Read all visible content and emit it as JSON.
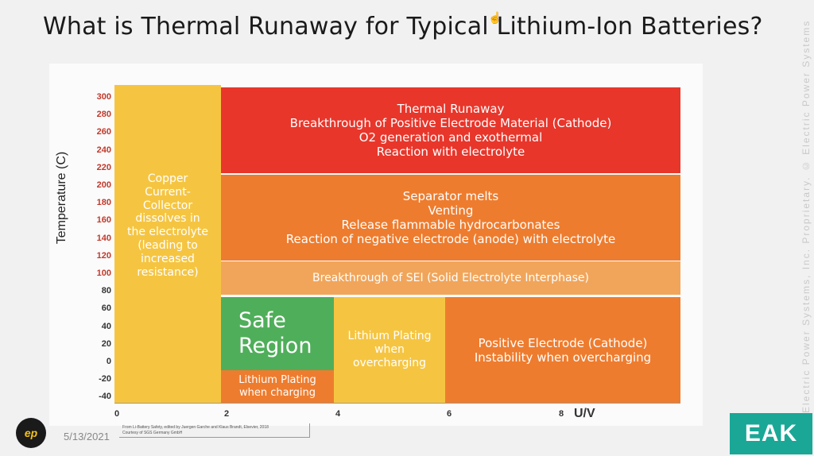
{
  "slide": {
    "title": "What is Thermal Runaway for Typical Lithium-Ion Batteries?",
    "date": "5/13/2021",
    "source_note": "From Li-Battery Safety, edited by Juergen Garche and Klaus Brandt, Elsevier, 2018\nCourtesy of SGS Germany GmbH",
    "watermark": "Electric Power Systems, Inc. Proprietary. © Electric Power Systems",
    "logo_right_text": "EAK",
    "logo_left_text": "ep"
  },
  "chart_data": {
    "type": "table",
    "ylabel": "Temperature (C)",
    "xlabel": "U/V",
    "y_ticks": [
      "300",
      "280",
      "260",
      "240",
      "220",
      "200",
      "180",
      "160",
      "140",
      "120",
      "100",
      "80",
      "60",
      "40",
      "20",
      "0",
      "-20",
      "-40"
    ],
    "x_ticks": [
      "0",
      "2",
      "4",
      "6",
      "8"
    ],
    "ylim": [
      -40,
      300
    ],
    "xlim": [
      0,
      10
    ],
    "regions": [
      {
        "name": "copper",
        "text": "Copper\nCurrent-\nCollector\ndissolves in\nthe electrolyte\n(leading to\nincreased\nresistance)",
        "color": "#f5c542"
      },
      {
        "name": "thermal",
        "text": "Thermal Runaway\nBreakthrough of Positive Electrode Material (Cathode)\nO2 generation and exothermal\nReaction with electrolyte",
        "color": "#e8362b"
      },
      {
        "name": "separator",
        "text": "Separator melts\nVenting\nRelease flammable hydrocarbonates\nReaction of negative electrode (anode) with electrolyte",
        "color": "#ee7c2e"
      },
      {
        "name": "sei",
        "text": "Breakthrough of SEI (Solid Electrolyte Interphase)",
        "color": "#f1a55a"
      },
      {
        "name": "safe",
        "text": "Safe\nRegion",
        "color": "#4fae5a"
      },
      {
        "name": "li-plating-charging",
        "text": "Lithium Plating\nwhen charging",
        "color": "#ee7c2e"
      },
      {
        "name": "li-plating-overcharging",
        "text": "Lithium Plating\nwhen\novercharging",
        "color": "#f5c542"
      },
      {
        "name": "cathode-instability",
        "text": "Positive Electrode (Cathode)\nInstability when overcharging",
        "color": "#ee7c2e"
      }
    ]
  }
}
